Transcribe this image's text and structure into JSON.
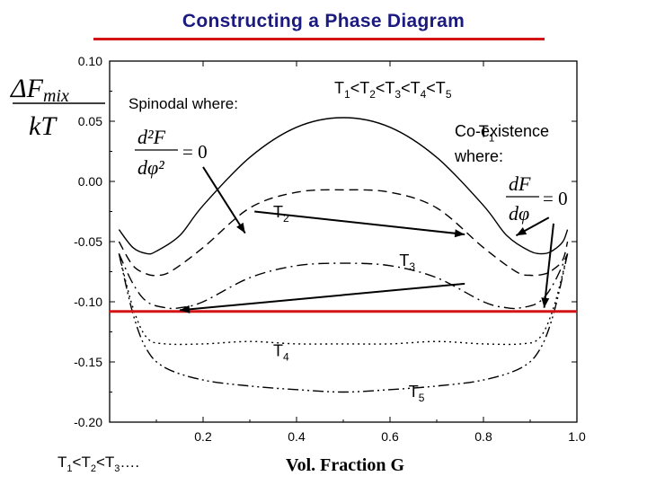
{
  "slide": {
    "title": "Constructing a Phase Diagram",
    "ylabel_top": "ΔF",
    "ylabel_sub": "mix",
    "ylabel_bottom": "kT",
    "spinodal_label": "Spinodal where:",
    "spinodal_eq_num": "d²F",
    "spinodal_eq_den": "dφ²",
    "spinodal_eq_rhs": "= 0",
    "order_top": {
      "parts": [
        "T",
        "1",
        "<T",
        "2",
        "<T",
        "3",
        "<T",
        "4",
        "<T",
        "5"
      ]
    },
    "coex_label_1": "Co-existence",
    "coex_label_2": "where:",
    "coex_eq_num": "dF",
    "coex_eq_den": "dφ",
    "coex_eq_rhs": "= 0",
    "foot": {
      "parts": [
        "T",
        "1",
        "<T",
        "2",
        "<T",
        "3",
        "…."
      ]
    }
  },
  "chart_data": {
    "type": "line",
    "xlabel": "Vol. Fraction G",
    "xlim": [
      0,
      1.0
    ],
    "ylim": [
      -0.2,
      0.1
    ],
    "xticks": [
      "0.2",
      "0.4",
      "0.6",
      "0.8",
      "1.0"
    ],
    "yticks": [
      "0.10",
      "0.05",
      "0.00",
      "-0.05",
      "-0.10",
      "-0.15",
      "-0.20"
    ],
    "series": [
      {
        "name": "T₁",
        "style": "solid",
        "x": [
          0.02,
          0.05,
          0.08,
          0.1,
          0.15,
          0.2,
          0.3,
          0.4,
          0.5,
          0.6,
          0.7,
          0.8,
          0.85,
          0.9,
          0.93,
          0.95,
          0.97,
          0.98
        ],
        "y": [
          -0.04,
          -0.055,
          -0.06,
          -0.058,
          -0.045,
          -0.02,
          0.02,
          0.045,
          0.053,
          0.045,
          0.02,
          -0.02,
          -0.045,
          -0.058,
          -0.06,
          -0.057,
          -0.05,
          -0.04
        ]
      },
      {
        "name": "T₂",
        "style": "dashed",
        "x": [
          0.02,
          0.05,
          0.08,
          0.1,
          0.13,
          0.2,
          0.3,
          0.4,
          0.5,
          0.6,
          0.7,
          0.8,
          0.87,
          0.9,
          0.93,
          0.95,
          0.97,
          0.98
        ],
        "y": [
          -0.05,
          -0.07,
          -0.077,
          -0.078,
          -0.075,
          -0.055,
          -0.022,
          -0.009,
          -0.007,
          -0.009,
          -0.022,
          -0.055,
          -0.075,
          -0.078,
          -0.077,
          -0.073,
          -0.065,
          -0.05
        ]
      },
      {
        "name": "T₃",
        "style": "dashdot",
        "x": [
          0.02,
          0.05,
          0.08,
          0.12,
          0.15,
          0.2,
          0.3,
          0.4,
          0.5,
          0.6,
          0.7,
          0.8,
          0.85,
          0.88,
          0.92,
          0.95,
          0.98
        ],
        "y": [
          -0.06,
          -0.085,
          -0.1,
          -0.105,
          -0.105,
          -0.1,
          -0.08,
          -0.07,
          -0.068,
          -0.07,
          -0.08,
          -0.1,
          -0.105,
          -0.105,
          -0.1,
          -0.085,
          -0.06
        ]
      },
      {
        "name": "T₄",
        "style": "dotted",
        "x": [
          0.02,
          0.05,
          0.08,
          0.12,
          0.2,
          0.3,
          0.4,
          0.5,
          0.6,
          0.7,
          0.8,
          0.88,
          0.92,
          0.95,
          0.98
        ],
        "y": [
          -0.06,
          -0.105,
          -0.13,
          -0.135,
          -0.135,
          -0.133,
          -0.135,
          -0.135,
          -0.135,
          -0.133,
          -0.135,
          -0.135,
          -0.13,
          -0.105,
          -0.06
        ]
      },
      {
        "name": "T₅",
        "style": "dashdotdot",
        "x": [
          0.02,
          0.05,
          0.08,
          0.12,
          0.2,
          0.3,
          0.4,
          0.5,
          0.6,
          0.7,
          0.8,
          0.88,
          0.92,
          0.95,
          0.98
        ],
        "y": [
          -0.06,
          -0.11,
          -0.14,
          -0.155,
          -0.165,
          -0.17,
          -0.173,
          -0.175,
          -0.173,
          -0.17,
          -0.165,
          -0.155,
          -0.14,
          -0.11,
          -0.06
        ]
      }
    ],
    "series_labels": [
      {
        "text": "T",
        "sub": "1",
        "x": 0.79,
        "y": 0.037
      },
      {
        "text": "T",
        "sub": "2",
        "x": 0.35,
        "y": -0.03
      },
      {
        "text": "T",
        "sub": "3",
        "x": 0.62,
        "y": -0.07
      },
      {
        "text": "T",
        "sub": "4",
        "x": 0.35,
        "y": -0.145
      },
      {
        "text": "T",
        "sub": "5",
        "x": 0.64,
        "y": -0.179
      }
    ],
    "tie_line": {
      "y": -0.108,
      "color": "#d41414"
    },
    "arrows": [
      {
        "from": [
          0.2,
          0.012
        ],
        "to": [
          0.29,
          -0.043
        ]
      },
      {
        "from": [
          0.31,
          -0.025
        ],
        "to": [
          0.76,
          -0.044
        ]
      },
      {
        "from": [
          0.76,
          -0.085
        ],
        "to": [
          0.15,
          -0.107
        ]
      },
      {
        "from": [
          0.94,
          -0.03
        ],
        "to": [
          0.87,
          -0.045
        ]
      },
      {
        "from": [
          0.95,
          -0.035
        ],
        "to": [
          0.93,
          -0.105
        ]
      }
    ]
  }
}
